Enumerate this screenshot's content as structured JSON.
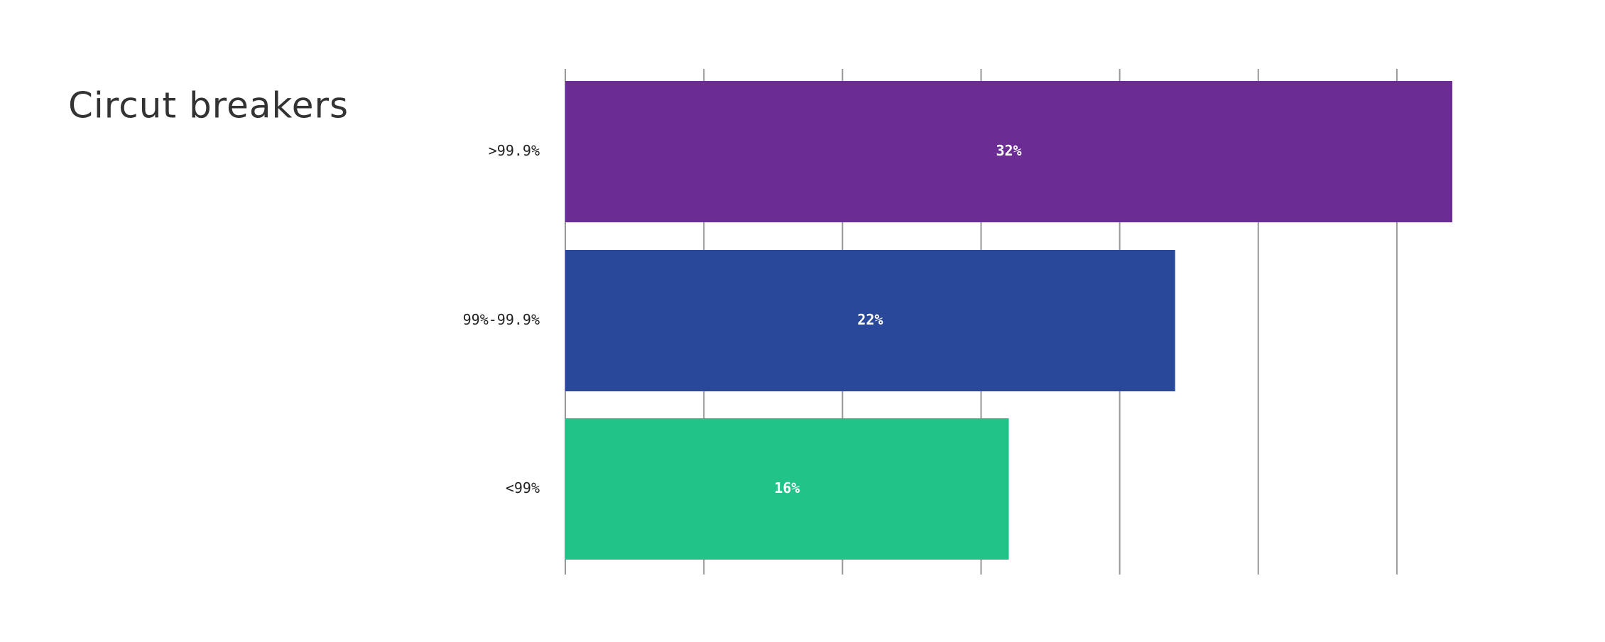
{
  "chart_data": {
    "type": "bar",
    "orientation": "horizontal",
    "title": "Circut breakers",
    "categories": [
      ">99.9%",
      "99%-99.9%",
      "<99%"
    ],
    "values": [
      32,
      22,
      16
    ],
    "value_labels": [
      "32%",
      "22%",
      "16%"
    ],
    "colors": [
      "#6b2d94",
      "#2a4899",
      "#22c388"
    ],
    "xlim": [
      0,
      32
    ],
    "xticks": [
      0,
      5,
      10,
      15,
      20,
      25,
      30
    ],
    "grid": true
  }
}
